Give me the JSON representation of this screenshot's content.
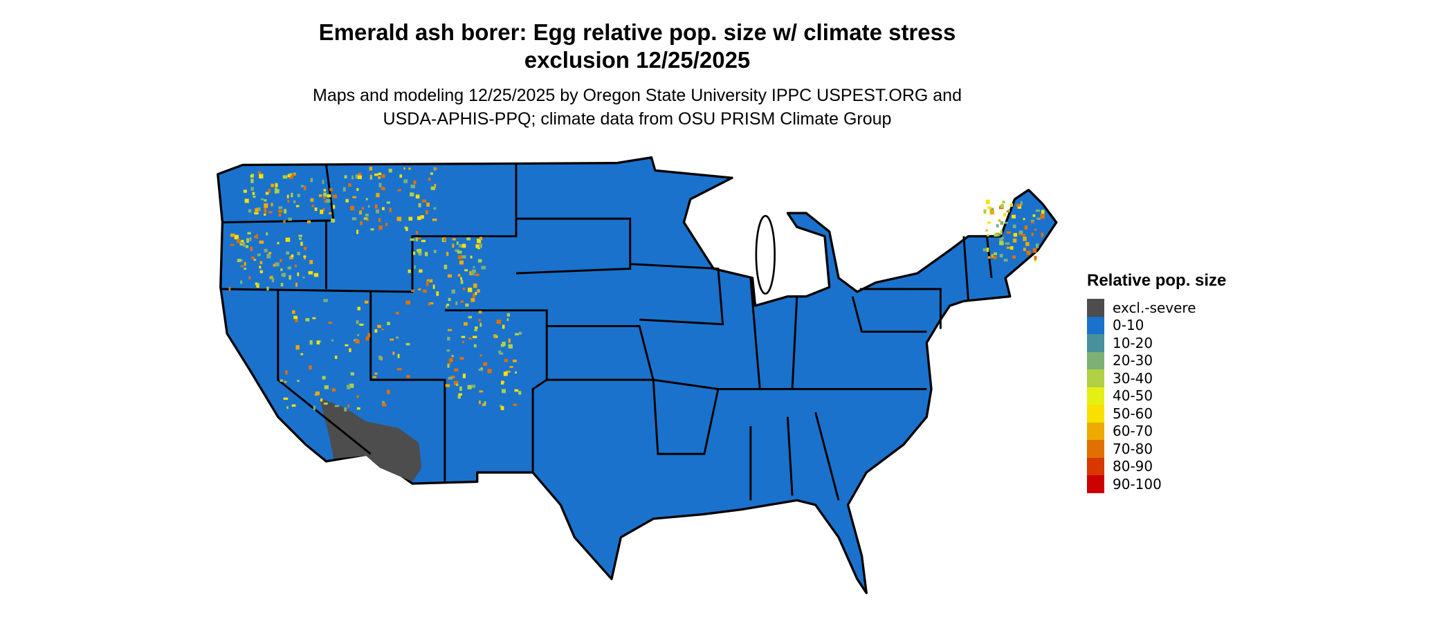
{
  "title_line1": "Emerald ash borer: Egg relative pop. size w/ climate stress",
  "title_line2": "exclusion 12/25/2025",
  "subtitle_line1": "Maps and modeling 12/25/2025 by Oregon State University IPPC USPEST.ORG and",
  "subtitle_line2": "USDA-APHIS-PPQ; climate data from OSU PRISM Climate Group",
  "legend": {
    "title": "Relative pop. size",
    "items": [
      {
        "label": "excl.-severe",
        "color": "#4d4d4d"
      },
      {
        "label": "0-10",
        "color": "#1a72cc"
      },
      {
        "label": "10-20",
        "color": "#48919c"
      },
      {
        "label": "20-30",
        "color": "#7db075"
      },
      {
        "label": "30-40",
        "color": "#b0d045"
      },
      {
        "label": "40-50",
        "color": "#e4f014"
      },
      {
        "label": "50-60",
        "color": "#f8e000"
      },
      {
        "label": "60-70",
        "color": "#eeaa00"
      },
      {
        "label": "70-80",
        "color": "#e07000"
      },
      {
        "label": "80-90",
        "color": "#d83800"
      },
      {
        "label": "90-100",
        "color": "#cc0000"
      }
    ]
  },
  "map": {
    "base_color": "#1a72cc",
    "excluded_color": "#4d4d4d",
    "border_color": "#000000"
  }
}
